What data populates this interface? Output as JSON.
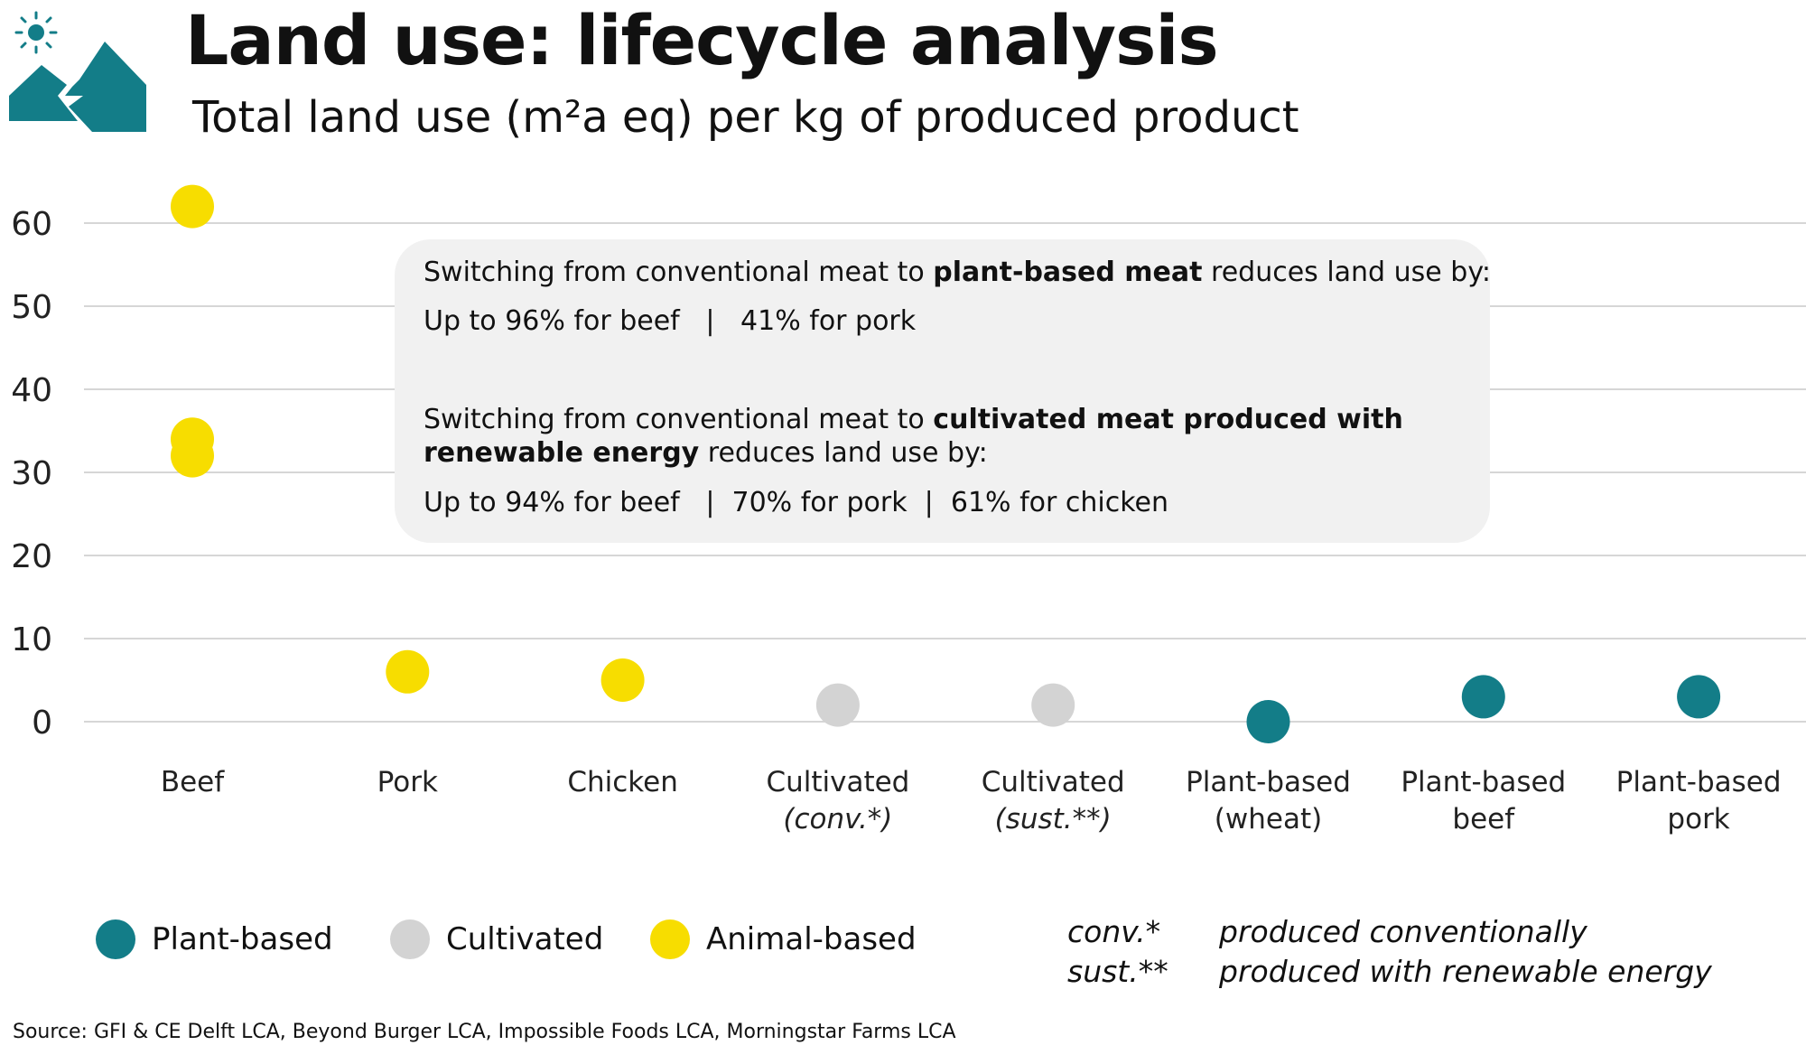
{
  "header": {
    "title": "Land use: lifecycle analysis",
    "subtitle": "Total land use (m²a eq) per kg of produced product"
  },
  "colors": {
    "plant": "#137d88",
    "cultivated": "#d3d3d3",
    "animal": "#f7dd00",
    "grid": "#d6d6d6",
    "callout_bg": "#f1f1f1"
  },
  "logo": {
    "name": "mountain-sun-logo"
  },
  "chart_data": {
    "type": "scatter",
    "title": "Land use: lifecycle analysis",
    "ylabel": "",
    "xlabel": "",
    "ylim": [
      0,
      60
    ],
    "yticks": [
      0,
      10,
      20,
      30,
      40,
      50,
      60
    ],
    "grid": true,
    "categories": [
      {
        "line1": "Beef",
        "line2": "",
        "italic2": false
      },
      {
        "line1": "Pork",
        "line2": "",
        "italic2": false
      },
      {
        "line1": "Chicken",
        "line2": "",
        "italic2": false
      },
      {
        "line1": "Cultivated",
        "line2": "(conv.*)",
        "italic2": true
      },
      {
        "line1": "Cultivated",
        "line2": "(sust.**)",
        "italic2": true
      },
      {
        "line1": "Plant-based",
        "line2": "(wheat)",
        "italic2": false
      },
      {
        "line1": "Plant-based",
        "line2": "beef",
        "italic2": false
      },
      {
        "line1": "Plant-based",
        "line2": "pork",
        "italic2": false
      }
    ],
    "series": [
      {
        "name": "Animal-based",
        "color": "#f7dd00",
        "points": [
          {
            "category": 0,
            "y": 62
          },
          {
            "category": 0,
            "y": 34
          },
          {
            "category": 0,
            "y": 32
          },
          {
            "category": 1,
            "y": 6
          },
          {
            "category": 2,
            "y": 5
          }
        ]
      },
      {
        "name": "Cultivated",
        "color": "#d3d3d3",
        "points": [
          {
            "category": 3,
            "y": 2
          },
          {
            "category": 4,
            "y": 2
          }
        ]
      },
      {
        "name": "Plant-based",
        "color": "#137d88",
        "points": [
          {
            "category": 5,
            "y": 0
          },
          {
            "category": 6,
            "y": 3
          },
          {
            "category": 7,
            "y": 3
          }
        ]
      }
    ]
  },
  "callout": {
    "p1_pre": "Switching from conventional meat to ",
    "p1_bold": "plant-based meat",
    "p1_post": " reduces land use by:",
    "p1_values": "Up to 96% for beef   |   41% for pork",
    "p2_pre": "Switching from conventional meat to ",
    "p2_bold1": "cultivated meat produced with",
    "p2_bold2": "renewable energy",
    "p2_post": " reduces land use by:",
    "p2_values": "Up to 94% for beef   |  70% for pork  |  61% for chicken"
  },
  "legend": [
    {
      "label": "Plant-based",
      "color": "#137d88"
    },
    {
      "label": "Cultivated",
      "color": "#d3d3d3"
    },
    {
      "label": "Animal-based",
      "color": "#f7dd00"
    }
  ],
  "notes": [
    {
      "abbr": "conv.*",
      "text": "produced conventionally"
    },
    {
      "abbr": "sust.**",
      "text": "produced with renewable energy"
    }
  ],
  "source": "Source: GFI & CE Delft LCA, Beyond Burger LCA, Impossible Foods LCA, Morningstar Farms LCA"
}
